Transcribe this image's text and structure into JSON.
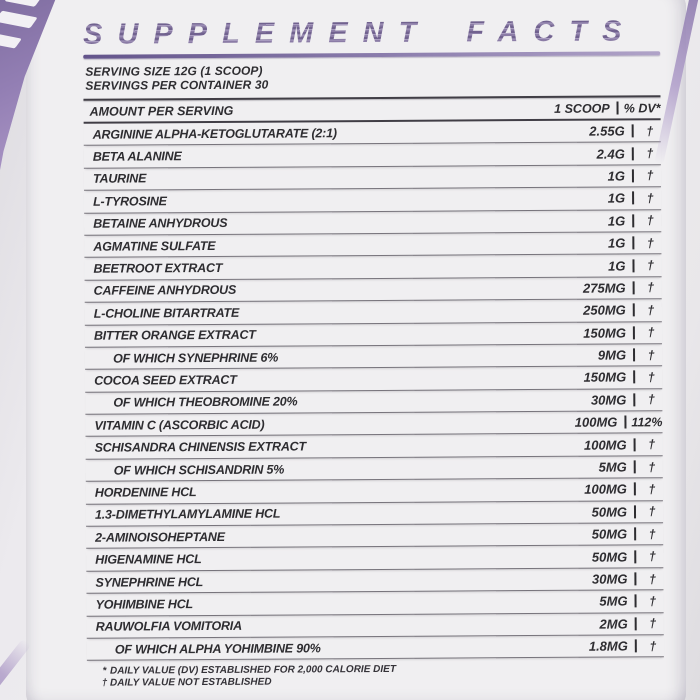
{
  "panel": {
    "title": "SUPPLEMENT FACTS",
    "serving": {
      "size_line": "SERVING SIZE 12G (1 SCOOP)",
      "container_line": "SERVINGS PER CONTAINER 30"
    },
    "columns": {
      "amount": "AMOUNT PER SERVING",
      "scoop": "1 SCOOP",
      "dv": "% DV*"
    },
    "rows": [
      {
        "label": "ARGININE ALPHA-KETOGLUTARATE (2:1)",
        "value": "2.55G",
        "dv": "†",
        "sub": false
      },
      {
        "label": "BETA ALANINE",
        "value": "2.4G",
        "dv": "†",
        "sub": false
      },
      {
        "label": "TAURINE",
        "value": "1G",
        "dv": "†",
        "sub": false
      },
      {
        "label": "L-TYROSINE",
        "value": "1G",
        "dv": "†",
        "sub": false
      },
      {
        "label": "BETAINE ANHYDROUS",
        "value": "1G",
        "dv": "†",
        "sub": false
      },
      {
        "label": "AGMATINE SULFATE",
        "value": "1G",
        "dv": "†",
        "sub": false
      },
      {
        "label": "BEETROOT EXTRACT",
        "value": "1G",
        "dv": "†",
        "sub": false
      },
      {
        "label": "CAFFEINE ANHYDROUS",
        "value": "275MG",
        "dv": "†",
        "sub": false
      },
      {
        "label": "L-CHOLINE BITARTRATE",
        "value": "250MG",
        "dv": "†",
        "sub": false
      },
      {
        "label": "BITTER ORANGE EXTRACT",
        "value": "150MG",
        "dv": "†",
        "sub": false
      },
      {
        "label": "OF WHICH SYNEPHRINE 6%",
        "value": "9MG",
        "dv": "†",
        "sub": true
      },
      {
        "label": "COCOA SEED EXTRACT",
        "value": "150MG",
        "dv": "†",
        "sub": false
      },
      {
        "label": "OF WHICH THEOBROMINE 20%",
        "value": "30MG",
        "dv": "†",
        "sub": true
      },
      {
        "label": "VITAMIN C (ASCORBIC ACID)",
        "value": "100MG",
        "dv": "112%",
        "sub": false
      },
      {
        "label": "SCHISANDRA CHINENSIS EXTRACT",
        "value": "100MG",
        "dv": "†",
        "sub": false
      },
      {
        "label": "OF WHICH SCHISANDRIN 5%",
        "value": "5MG",
        "dv": "†",
        "sub": true
      },
      {
        "label": "HORDENINE HCL",
        "value": "100MG",
        "dv": "†",
        "sub": false
      },
      {
        "label": "1.3-DIMETHYLAMYLAMINE HCL",
        "value": "50MG",
        "dv": "†",
        "sub": false
      },
      {
        "label": "2-AMINOISOHEPTANE",
        "value": "50MG",
        "dv": "†",
        "sub": false
      },
      {
        "label": "HIGENAMINE HCL",
        "value": "50MG",
        "dv": "†",
        "sub": false
      },
      {
        "label": "SYNEPHRINE HCL",
        "value": "30MG",
        "dv": "†",
        "sub": false
      },
      {
        "label": "YOHIMBINE HCL",
        "value": "5MG",
        "dv": "†",
        "sub": false
      },
      {
        "label": "RAUWOLFIA VOMITORIA",
        "value": "2MG",
        "dv": "†",
        "sub": false
      },
      {
        "label": "OF WHICH ALPHA YOHIMBINE 90%",
        "value": "1.8MG",
        "dv": "†",
        "sub": true
      }
    ],
    "footnotes": [
      {
        "marker": "*",
        "text": "DAILY VALUE (DV) ESTABLISHED FOR 2,000 CALORIE DIET"
      },
      {
        "marker": "†",
        "text": "DAILY VALUE NOT ESTABLISHED"
      }
    ],
    "colors": {
      "accent_purple": "#9b87ba",
      "paper": "#f0eff1",
      "ink": "#2e2d31"
    }
  }
}
